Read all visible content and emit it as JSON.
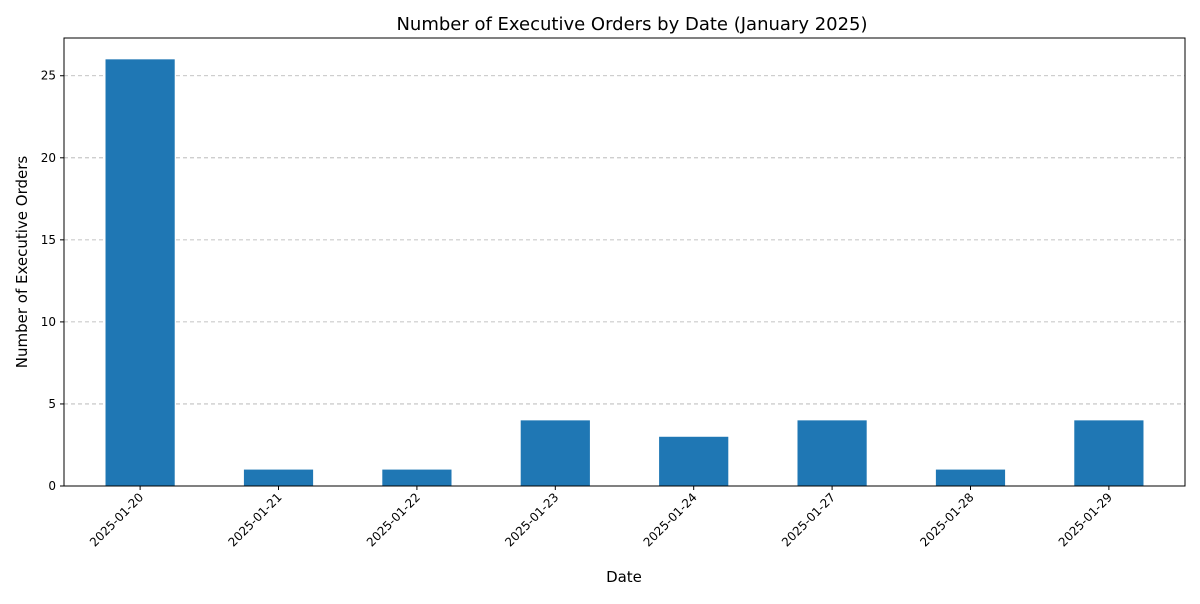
{
  "chart_data": {
    "type": "bar",
    "title": "Number of Executive Orders by Date (January 2025)",
    "xlabel": "Date",
    "ylabel": "Number of Executive Orders",
    "categories": [
      "2025-01-20",
      "2025-01-21",
      "2025-01-22",
      "2025-01-23",
      "2025-01-24",
      "2025-01-27",
      "2025-01-28",
      "2025-01-29"
    ],
    "values": [
      26,
      1,
      1,
      4,
      3,
      4,
      1,
      4
    ],
    "ylim": [
      0,
      27.3
    ],
    "yticks": [
      0,
      5,
      10,
      15,
      20,
      25
    ],
    "ytick_labels": [
      "0",
      "5",
      "10",
      "15",
      "20",
      "25"
    ],
    "grid": "y-dashed",
    "bar_color": "#1f77b4",
    "legend": "none"
  }
}
